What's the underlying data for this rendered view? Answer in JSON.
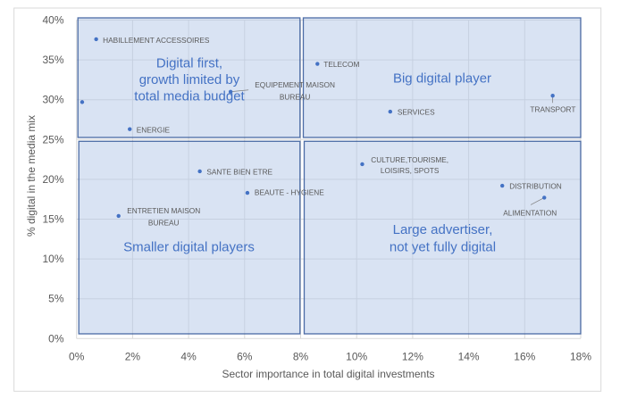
{
  "chart_data": {
    "type": "scatter",
    "title": "",
    "xlabel": "Sector importance in total digital investments",
    "ylabel": "% digital in the media mix",
    "xlim": [
      0,
      18
    ],
    "ylim": [
      0,
      40
    ],
    "grid": true,
    "x_ticks": [
      0,
      2,
      4,
      6,
      8,
      10,
      12,
      14,
      16,
      18
    ],
    "x_tick_labels": [
      "0%",
      "2%",
      "4%",
      "6%",
      "8%",
      "10%",
      "12%",
      "14%",
      "16%",
      "18%"
    ],
    "y_ticks": [
      0,
      5,
      10,
      15,
      20,
      25,
      30,
      35,
      40
    ],
    "y_tick_labels": [
      "0%",
      "5%",
      "10%",
      "15%",
      "20%",
      "25%",
      "30%",
      "35%",
      "40%"
    ],
    "points": [
      {
        "label_lines": [
          "HABILLEMENT ACCESSOIRES"
        ],
        "x": 0.7,
        "y": 37.6
      },
      {
        "label_lines": [],
        "x": 0.2,
        "y": 29.7
      },
      {
        "label_lines": [
          "ENERGIE"
        ],
        "x": 1.9,
        "y": 26.3
      },
      {
        "label_lines": [
          "EQUIPEMENT MAISON",
          "BUREAU"
        ],
        "x": 5.5,
        "y": 31.0
      },
      {
        "label_lines": [
          "TELECOM"
        ],
        "x": 8.6,
        "y": 34.5
      },
      {
        "label_lines": [
          "SERVICES"
        ],
        "x": 11.2,
        "y": 28.5
      },
      {
        "label_lines": [
          "TRANSPORT"
        ],
        "x": 17.0,
        "y": 30.5
      },
      {
        "label_lines": [
          "SANTE BIEN ETRE"
        ],
        "x": 4.4,
        "y": 21.0
      },
      {
        "label_lines": [
          "BEAUTE - HYGIENE"
        ],
        "x": 6.1,
        "y": 18.3
      },
      {
        "label_lines": [
          "ENTRETIEN MAISON",
          "BUREAU"
        ],
        "x": 1.5,
        "y": 15.4
      },
      {
        "label_lines": [
          "CULTURE,TOURISME,",
          "LOISIRS, SPOTS"
        ],
        "x": 10.2,
        "y": 21.9
      },
      {
        "label_lines": [
          "DISTRIBUTION"
        ],
        "x": 15.2,
        "y": 19.2
      },
      {
        "label_lines": [
          "ALIMENTATION"
        ],
        "x": 16.7,
        "y": 17.7
      }
    ],
    "quadrants": [
      {
        "x_range": [
          0,
          8
        ],
        "y_range": [
          25,
          40
        ],
        "label_lines": [
          "Digital first,",
          "growth limited by",
          "total media budget"
        ]
      },
      {
        "x_range": [
          8,
          18
        ],
        "y_range": [
          25,
          40
        ],
        "label_lines": [
          "Big digital player"
        ]
      },
      {
        "x_range": [
          0,
          8
        ],
        "y_range": [
          0,
          25
        ],
        "label_lines": [
          "Smaller digital players"
        ]
      },
      {
        "x_range": [
          8,
          18
        ],
        "y_range": [
          0,
          25
        ],
        "label_lines": [
          "Large advertiser,",
          "not yet fully digital"
        ]
      }
    ]
  },
  "colors": {
    "point": "#4472C4",
    "quadrant_fill": "#B4C7E7",
    "quadrant_border": "#2F5597",
    "quadrant_label": "#4472C4",
    "text": "#595959",
    "grid": "#D9D9D9",
    "leader": "#7F7F7F"
  }
}
